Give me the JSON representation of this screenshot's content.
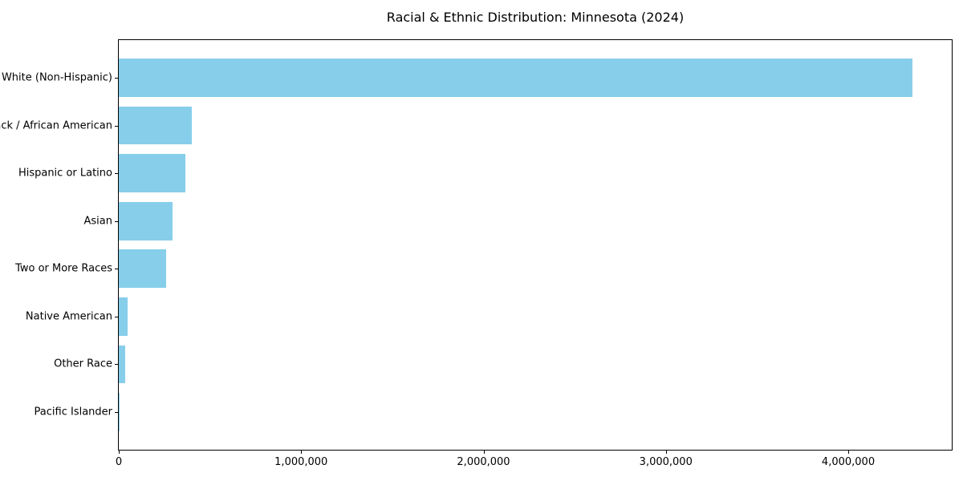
{
  "chart_data": {
    "type": "bar",
    "orientation": "horizontal",
    "title": "Racial & Ethnic Distribution: Minnesota (2024)",
    "categories": [
      "White (Non-Hispanic)",
      "Black / African American",
      "Hispanic or Latino",
      "Asian",
      "Two or More Races",
      "Native American",
      "Other Race",
      "Pacific Islander"
    ],
    "values": [
      4350000,
      400000,
      365000,
      295000,
      260000,
      50000,
      35000,
      3000
    ],
    "xlabel": "",
    "ylabel": "",
    "xlim": [
      0,
      4567500
    ],
    "x_ticks": [
      {
        "value": 0,
        "label": "0"
      },
      {
        "value": 1000000,
        "label": "1,000,000"
      },
      {
        "value": 2000000,
        "label": "2,000,000"
      },
      {
        "value": 3000000,
        "label": "3,000,000"
      },
      {
        "value": 4000000,
        "label": "4,000,000"
      }
    ],
    "bar_color": "#87CEEB",
    "text_color": "#000000",
    "background_color": "#ffffff",
    "grid": false,
    "legend": null
  }
}
